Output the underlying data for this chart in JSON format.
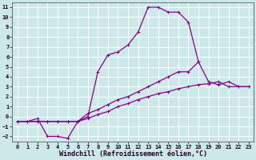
{
  "xlabel": "Windchill (Refroidissement éolien,°C)",
  "background_color": "#cce8e8",
  "grid_color": "#ffffff",
  "line_color": "#880088",
  "xlim": [
    -0.5,
    23.5
  ],
  "ylim": [
    -2.5,
    11.5
  ],
  "xticks": [
    0,
    1,
    2,
    3,
    4,
    5,
    6,
    7,
    8,
    9,
    10,
    11,
    12,
    13,
    14,
    15,
    16,
    17,
    18,
    19,
    20,
    21,
    22,
    23
  ],
  "yticks": [
    -2,
    -1,
    0,
    1,
    2,
    3,
    4,
    5,
    6,
    7,
    8,
    9,
    10,
    11
  ],
  "line_upper_x": [
    0,
    1,
    2,
    3,
    4,
    5,
    6,
    7,
    8,
    9,
    10,
    11,
    12,
    13,
    14,
    15,
    16,
    17,
    18
  ],
  "line_upper_y": [
    -0.5,
    -0.5,
    -0.2,
    -2.0,
    -2.0,
    -2.2,
    -0.5,
    0.0,
    4.5,
    6.2,
    6.5,
    7.2,
    8.5,
    11.0,
    11.0,
    10.5,
    10.5,
    9.5,
    5.5
  ],
  "line_mid_x": [
    0,
    1,
    2,
    3,
    4,
    5,
    6,
    7,
    8,
    9,
    10,
    11,
    12,
    13,
    14,
    15,
    16,
    17,
    18,
    19,
    20,
    21,
    22,
    23
  ],
  "line_mid_y": [
    -0.5,
    -0.5,
    -0.5,
    -0.5,
    -0.5,
    -0.5,
    -0.5,
    0.3,
    0.7,
    1.2,
    1.7,
    2.0,
    2.5,
    3.0,
    3.5,
    4.0,
    4.5,
    4.5,
    5.5,
    3.5,
    3.2,
    3.5,
    3.0,
    3.0
  ],
  "line_bot_x": [
    0,
    1,
    2,
    3,
    4,
    5,
    6,
    7,
    8,
    9,
    10,
    11,
    12,
    13,
    14,
    15,
    16,
    17,
    18,
    19,
    20,
    21,
    22,
    23
  ],
  "line_bot_y": [
    -0.5,
    -0.5,
    -0.5,
    -0.5,
    -0.5,
    -0.5,
    -0.5,
    -0.2,
    0.2,
    0.5,
    1.0,
    1.3,
    1.7,
    2.0,
    2.3,
    2.5,
    2.8,
    3.0,
    3.2,
    3.3,
    3.5,
    3.0,
    3.0,
    3.0
  ],
  "marker": "+",
  "markersize": 3,
  "linewidth": 0.9,
  "tick_fontsize": 5,
  "xlabel_fontsize": 6
}
